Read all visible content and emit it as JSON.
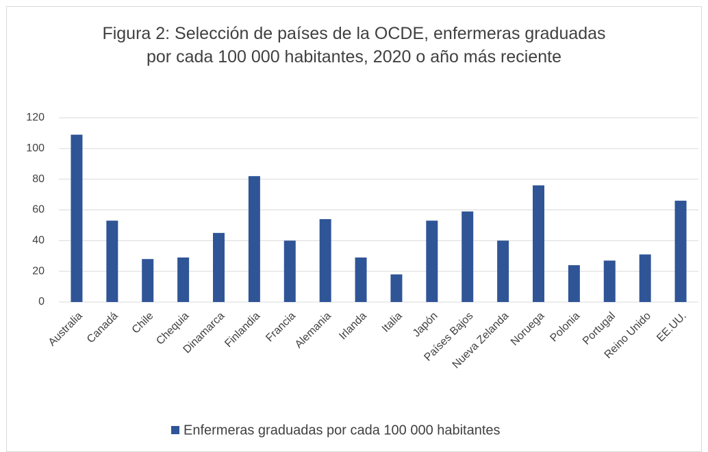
{
  "chart_data": {
    "type": "bar",
    "title": "Figura 2: Selección de países de la OCDE, enfermeras graduadas por cada 100 000 habitantes, 2020 o año más reciente",
    "categories": [
      "Australia",
      "Canadá",
      "Chile",
      "Chequia",
      "Dinamarca",
      "Finlandia",
      "Francia",
      "Alemania",
      "Irlanda",
      "Italia",
      "Japón",
      "Países Bajos",
      "Nueva Zelanda",
      "Noruega",
      "Polonia",
      "Portugal",
      "Reino Unido",
      "EE.UU."
    ],
    "series": [
      {
        "name": "Enfermeras graduadas por cada 100 000 habitantes",
        "color": "#2f5597",
        "values": [
          109,
          53,
          28,
          29,
          45,
          82,
          40,
          54,
          29,
          18,
          53,
          59,
          40,
          76,
          24,
          27,
          31,
          66
        ]
      }
    ],
    "ylim": [
      0,
      120
    ],
    "yticks": [
      0,
      20,
      40,
      60,
      80,
      100,
      120
    ],
    "grid": true,
    "legend": "bottom"
  }
}
